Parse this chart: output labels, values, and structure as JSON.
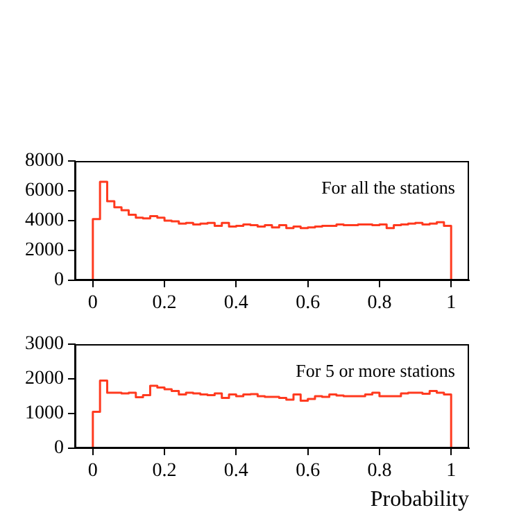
{
  "chart_data": [
    {
      "type": "histogram",
      "annotations": [
        "For all the stations"
      ],
      "color": "#ff3a1f",
      "bins": [
        0,
        0.02,
        0.04,
        0.06,
        0.08,
        0.1,
        0.12,
        0.14,
        0.16,
        0.18,
        0.2,
        0.22,
        0.24,
        0.26,
        0.28,
        0.3,
        0.32,
        0.34,
        0.36,
        0.38,
        0.4,
        0.42,
        0.44,
        0.46,
        0.48,
        0.5,
        0.52,
        0.54,
        0.56,
        0.58,
        0.6,
        0.62,
        0.64,
        0.66,
        0.68,
        0.7,
        0.72,
        0.74,
        0.76,
        0.78,
        0.8,
        0.82,
        0.84,
        0.86,
        0.88,
        0.9,
        0.92,
        0.94,
        0.96,
        0.98,
        1
      ],
      "values": [
        4100,
        6600,
        5300,
        4900,
        4700,
        4400,
        4200,
        4150,
        4300,
        4200,
        4000,
        3950,
        3800,
        3850,
        3750,
        3800,
        3850,
        3650,
        3850,
        3600,
        3650,
        3750,
        3700,
        3600,
        3700,
        3550,
        3700,
        3500,
        3600,
        3500,
        3550,
        3600,
        3650,
        3650,
        3750,
        3700,
        3700,
        3750,
        3750,
        3700,
        3750,
        3500,
        3700,
        3750,
        3800,
        3850,
        3750,
        3800,
        3900,
        3650
      ],
      "xlim": [
        -0.05,
        1.05
      ],
      "xticks": [
        0,
        0.2,
        0.4,
        0.6,
        0.8,
        1
      ],
      "ylim": [
        0,
        8000
      ],
      "yticks": [
        0,
        2000,
        4000,
        6000,
        8000
      ],
      "grid": false
    },
    {
      "type": "histogram",
      "annotations": [
        "For 5 or more stations"
      ],
      "xlabel": "Probability",
      "color": "#ff3a1f",
      "bins": [
        0,
        0.02,
        0.04,
        0.06,
        0.08,
        0.1,
        0.12,
        0.14,
        0.16,
        0.18,
        0.2,
        0.22,
        0.24,
        0.26,
        0.28,
        0.3,
        0.32,
        0.34,
        0.36,
        0.38,
        0.4,
        0.42,
        0.44,
        0.46,
        0.48,
        0.5,
        0.52,
        0.54,
        0.56,
        0.58,
        0.6,
        0.62,
        0.64,
        0.66,
        0.68,
        0.7,
        0.72,
        0.74,
        0.76,
        0.78,
        0.8,
        0.82,
        0.84,
        0.86,
        0.88,
        0.9,
        0.92,
        0.94,
        0.96,
        0.98,
        1
      ],
      "values": [
        1050,
        1950,
        1600,
        1600,
        1580,
        1600,
        1470,
        1530,
        1800,
        1750,
        1700,
        1650,
        1550,
        1600,
        1580,
        1550,
        1530,
        1580,
        1450,
        1550,
        1500,
        1550,
        1560,
        1500,
        1480,
        1480,
        1450,
        1400,
        1550,
        1370,
        1420,
        1500,
        1480,
        1550,
        1520,
        1500,
        1500,
        1500,
        1550,
        1600,
        1500,
        1500,
        1500,
        1580,
        1600,
        1600,
        1570,
        1650,
        1600,
        1550
      ],
      "xlim": [
        -0.05,
        1.05
      ],
      "xticks": [
        0,
        0.2,
        0.4,
        0.6,
        0.8,
        1
      ],
      "ylim": [
        0,
        3000
      ],
      "yticks": [
        0,
        1000,
        2000,
        3000
      ],
      "grid": false
    }
  ]
}
